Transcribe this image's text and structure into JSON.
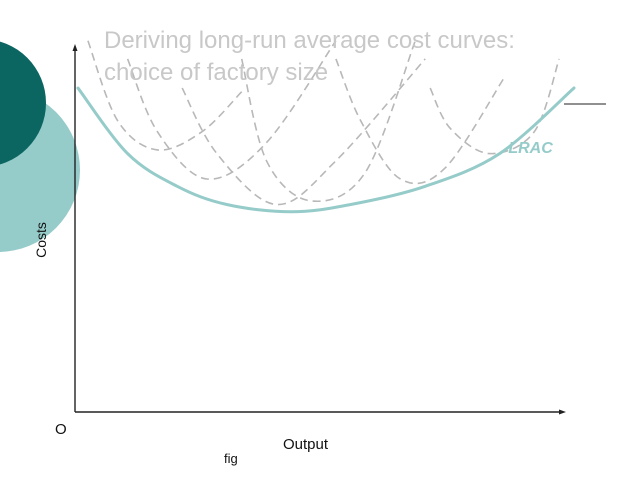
{
  "title_lines": [
    "Deriving long-run average cost curves:",
    "choice of factory size"
  ],
  "caption": "fig",
  "colors": {
    "lrac": "#95cbc9",
    "sratc": "#b8b8b8",
    "axis": "#222222",
    "title": "#c8c8c8",
    "deco_dark": "#0b6561",
    "deco_light": "#95cbc9"
  },
  "chart_data": {
    "type": "line",
    "xlabel": "Output",
    "ylabel": "Costs",
    "origin_label": "O",
    "xlim": [
      0,
      100
    ],
    "ylim": [
      0,
      100
    ],
    "grid": false,
    "series": [
      {
        "name": "LRAC",
        "style": "solid",
        "x": [
          0,
          10,
          20,
          30,
          43,
          55,
          70,
          85,
          100
        ],
        "y": [
          89,
          71,
          62,
          57,
          55,
          57,
          62,
          71,
          89
        ]
      },
      {
        "style": "dashed",
        "x": [
          2,
          8,
          16,
          25,
          33
        ],
        "y": [
          102,
          80,
          72,
          77,
          88
        ]
      },
      {
        "style": "dashed",
        "x": [
          10,
          16,
          26,
          38,
          52
        ],
        "y": [
          97,
          77,
          64,
          74,
          102
        ]
      },
      {
        "style": "dashed",
        "x": [
          21,
          28,
          40,
          52,
          70
        ],
        "y": [
          89,
          71,
          57,
          69,
          97
        ]
      },
      {
        "style": "dashed",
        "x": [
          33,
          38,
          47,
          58,
          68
        ],
        "y": [
          97,
          69,
          58,
          66,
          102
        ]
      },
      {
        "style": "dashed",
        "x": [
          52,
          57,
          65,
          74,
          86
        ],
        "y": [
          97,
          80,
          64,
          67,
          92
        ]
      },
      {
        "style": "dashed",
        "x": [
          71,
          75,
          83,
          92,
          97
        ],
        "y": [
          89,
          78,
          71,
          77,
          97
        ]
      }
    ],
    "annotations": [
      {
        "text": "LRAC",
        "x": 92,
        "y": 72,
        "series": 0
      }
    ]
  }
}
